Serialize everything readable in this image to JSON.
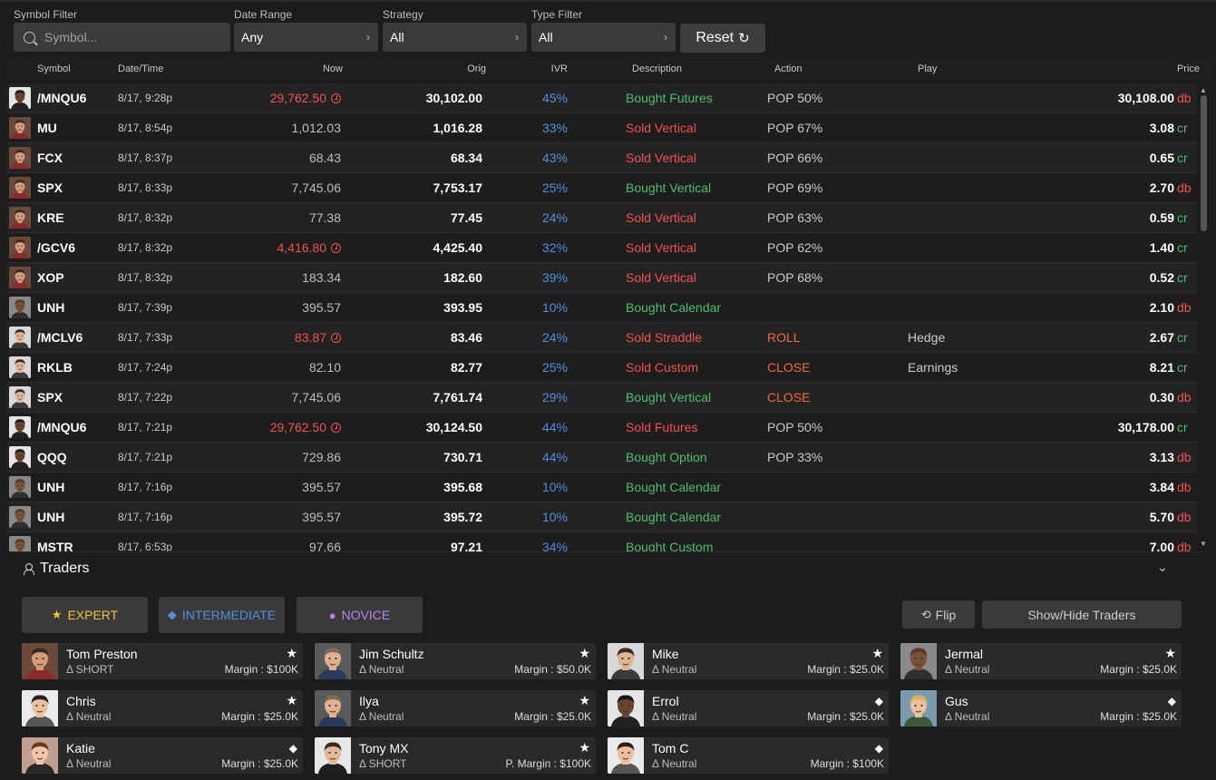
{
  "filters": {
    "symbol": {
      "label": "Symbol Filter",
      "placeholder": "Symbol..."
    },
    "date_range": {
      "label": "Date Range",
      "value": "Any"
    },
    "strategy": {
      "label": "Strategy",
      "value": "All"
    },
    "type": {
      "label": "Type Filter",
      "value": "All"
    },
    "reset_label": "Reset"
  },
  "table": {
    "headers": {
      "symbol": "Symbol",
      "datetime": "Date/Time",
      "now": "Now",
      "orig": "Orig",
      "ivr": "IVR",
      "description": "Description",
      "action": "Action",
      "play": "Play",
      "price": "Price"
    },
    "rows": [
      {
        "avatar": "a4",
        "symbol": "/MNQU6",
        "datetime": "8/17, 9:28p",
        "now": "29,762.50",
        "alert": true,
        "orig": "30,102.00",
        "ivr": "45%",
        "description": "Bought Futures",
        "desc_color": "green",
        "action": "POP 50%",
        "action_color": "plain",
        "play": "",
        "price": "30,108.00",
        "unit": "db"
      },
      {
        "avatar": "a1",
        "symbol": "MU",
        "datetime": "8/17, 8:54p",
        "now": "1,012.03",
        "alert": false,
        "orig": "1,016.28",
        "ivr": "33%",
        "description": "Sold Vertical",
        "desc_color": "red",
        "action": "POP 67%",
        "action_color": "plain",
        "play": "",
        "price": "3.08",
        "unit": "cr"
      },
      {
        "avatar": "a1",
        "symbol": "FCX",
        "datetime": "8/17, 8:37p",
        "now": "68.43",
        "alert": false,
        "orig": "68.34",
        "ivr": "43%",
        "description": "Sold Vertical",
        "desc_color": "red",
        "action": "POP 66%",
        "action_color": "plain",
        "play": "",
        "price": "0.65",
        "unit": "cr"
      },
      {
        "avatar": "a1",
        "symbol": "SPX",
        "datetime": "8/17, 8:33p",
        "now": "7,745.06",
        "alert": false,
        "orig": "7,753.17",
        "ivr": "25%",
        "description": "Bought Vertical",
        "desc_color": "green",
        "action": "POP 69%",
        "action_color": "plain",
        "play": "",
        "price": "2.70",
        "unit": "db"
      },
      {
        "avatar": "a1",
        "symbol": "KRE",
        "datetime": "8/17, 8:32p",
        "now": "77.38",
        "alert": false,
        "orig": "77.45",
        "ivr": "24%",
        "description": "Sold Vertical",
        "desc_color": "red",
        "action": "POP 63%",
        "action_color": "plain",
        "play": "",
        "price": "0.59",
        "unit": "cr"
      },
      {
        "avatar": "a1",
        "symbol": "/GCV6",
        "datetime": "8/17, 8:32p",
        "now": "4,416.80",
        "alert": true,
        "orig": "4,425.40",
        "ivr": "32%",
        "description": "Sold Vertical",
        "desc_color": "red",
        "action": "POP 62%",
        "action_color": "plain",
        "play": "",
        "price": "1.40",
        "unit": "cr"
      },
      {
        "avatar": "a1",
        "symbol": "XOP",
        "datetime": "8/17, 8:32p",
        "now": "183.34",
        "alert": false,
        "orig": "182.60",
        "ivr": "39%",
        "description": "Sold Vertical",
        "desc_color": "red",
        "action": "POP 68%",
        "action_color": "plain",
        "play": "",
        "price": "0.52",
        "unit": "cr"
      },
      {
        "avatar": "a2",
        "symbol": "UNH",
        "datetime": "8/17, 7:39p",
        "now": "395.57",
        "alert": false,
        "orig": "393.95",
        "ivr": "10%",
        "description": "Bought Calendar",
        "desc_color": "green",
        "action": "",
        "action_color": "plain",
        "play": "",
        "price": "2.10",
        "unit": "db"
      },
      {
        "avatar": "a3",
        "symbol": "/MCLV6",
        "datetime": "8/17, 7:33p",
        "now": "83.87",
        "alert": true,
        "orig": "83.46",
        "ivr": "24%",
        "description": "Sold Straddle",
        "desc_color": "red",
        "action": "ROLL",
        "action_color": "orange",
        "play": "Hedge",
        "price": "2.67",
        "unit": "cr"
      },
      {
        "avatar": "a3",
        "symbol": "RKLB",
        "datetime": "8/17, 7:24p",
        "now": "82.10",
        "alert": false,
        "orig": "82.77",
        "ivr": "25%",
        "description": "Sold Custom",
        "desc_color": "red",
        "action": "CLOSE",
        "action_color": "orange",
        "play": "Earnings",
        "price": "8.21",
        "unit": "cr"
      },
      {
        "avatar": "a3",
        "symbol": "SPX",
        "datetime": "8/17, 7:22p",
        "now": "7,745.06",
        "alert": false,
        "orig": "7,761.74",
        "ivr": "29%",
        "description": "Bought Vertical",
        "desc_color": "green",
        "action": "CLOSE",
        "action_color": "orange",
        "play": "",
        "price": "0.30",
        "unit": "db"
      },
      {
        "avatar": "a4",
        "symbol": "/MNQU6",
        "datetime": "8/17, 7:21p",
        "now": "29,762.50",
        "alert": true,
        "orig": "30,124.50",
        "ivr": "44%",
        "description": "Sold Futures",
        "desc_color": "red",
        "action": "POP 50%",
        "action_color": "plain",
        "play": "",
        "price": "30,178.00",
        "unit": "cr"
      },
      {
        "avatar": "a4",
        "symbol": "QQQ",
        "datetime": "8/17, 7:21p",
        "now": "729.86",
        "alert": false,
        "orig": "730.71",
        "ivr": "44%",
        "description": "Bought Option",
        "desc_color": "green",
        "action": "POP 33%",
        "action_color": "plain",
        "play": "",
        "price": "3.13",
        "unit": "db"
      },
      {
        "avatar": "a2",
        "symbol": "UNH",
        "datetime": "8/17, 7:16p",
        "now": "395.57",
        "alert": false,
        "orig": "395.68",
        "ivr": "10%",
        "description": "Bought Calendar",
        "desc_color": "green",
        "action": "",
        "action_color": "plain",
        "play": "",
        "price": "3.84",
        "unit": "db"
      },
      {
        "avatar": "a2",
        "symbol": "UNH",
        "datetime": "8/17, 7:16p",
        "now": "395.57",
        "alert": false,
        "orig": "395.72",
        "ivr": "10%",
        "description": "Bought Calendar",
        "desc_color": "green",
        "action": "",
        "action_color": "plain",
        "play": "",
        "price": "5.70",
        "unit": "db"
      },
      {
        "avatar": "a2",
        "symbol": "MSTR",
        "datetime": "8/17, 6:53p",
        "now": "97.66",
        "alert": false,
        "orig": "97.21",
        "ivr": "34%",
        "description": "Bought Custom",
        "desc_color": "green",
        "action": "",
        "action_color": "plain",
        "play": "",
        "price": "7.00",
        "unit": "db"
      }
    ]
  },
  "traders_panel": {
    "title": "Traders",
    "levels": {
      "expert": "EXPERT",
      "intermediate": "INTERMEDIATE",
      "novice": "NOVICE"
    },
    "flip_label": "Flip",
    "showhide_label": "Show/Hide Traders",
    "traders": [
      {
        "name": "Tom Preston",
        "delta": "Δ SHORT",
        "margin": "Margin : $100K",
        "badge": "star",
        "avatar": "a1"
      },
      {
        "name": "Jim Schultz",
        "delta": "Δ Neutral",
        "margin": "Margin : $50.0K",
        "badge": "star",
        "avatar": "a5"
      },
      {
        "name": "Mike",
        "delta": "Δ Neutral",
        "margin": "Margin : $25.0K",
        "badge": "star",
        "avatar": "a3"
      },
      {
        "name": "Jermal",
        "delta": "Δ Neutral",
        "margin": "Margin : $25.0K",
        "badge": "star",
        "avatar": "a2"
      },
      {
        "name": "Chris",
        "delta": "Δ Neutral",
        "margin": "Margin : $25.0K",
        "badge": "star",
        "avatar": "a6"
      },
      {
        "name": "Ilya",
        "delta": "Δ Neutral",
        "margin": "Margin : $25.0K",
        "badge": "star",
        "avatar": "a5"
      },
      {
        "name": "Errol",
        "delta": "Δ Neutral",
        "margin": "Margin : $25.0K",
        "badge": "diamond",
        "avatar": "a4"
      },
      {
        "name": "Gus",
        "delta": "Δ Neutral",
        "margin": "Margin : $25.0K",
        "badge": "diamond",
        "avatar": "a7"
      },
      {
        "name": "Katie",
        "delta": "Δ Neutral",
        "margin": "Margin : $25.0K",
        "badge": "diamond",
        "avatar": "a8"
      },
      {
        "name": "Tony MX",
        "delta": "Δ SHORT",
        "margin": "P. Margin : $100K",
        "badge": "star",
        "avatar": "a9"
      },
      {
        "name": "Tom C",
        "delta": "Δ Neutral",
        "margin": "Margin : $100K",
        "badge": "diamond",
        "avatar": "a6"
      }
    ]
  },
  "colors": {
    "green": "#4bbf6b",
    "red": "#f0524f",
    "blue": "#4f8fdc",
    "orange": "#f26a3c",
    "gold": "#f2c23a",
    "purple": "#b784f0"
  },
  "icons": {
    "search": "search-icon",
    "chevron": "chevron-right-icon",
    "reset": "refresh-icon",
    "alert": "alert-clock-icon",
    "person": "person-icon",
    "collapse": "chevron-down-icon",
    "flip": "flip-icon",
    "star": "star-icon",
    "diamond": "diamond-icon"
  }
}
